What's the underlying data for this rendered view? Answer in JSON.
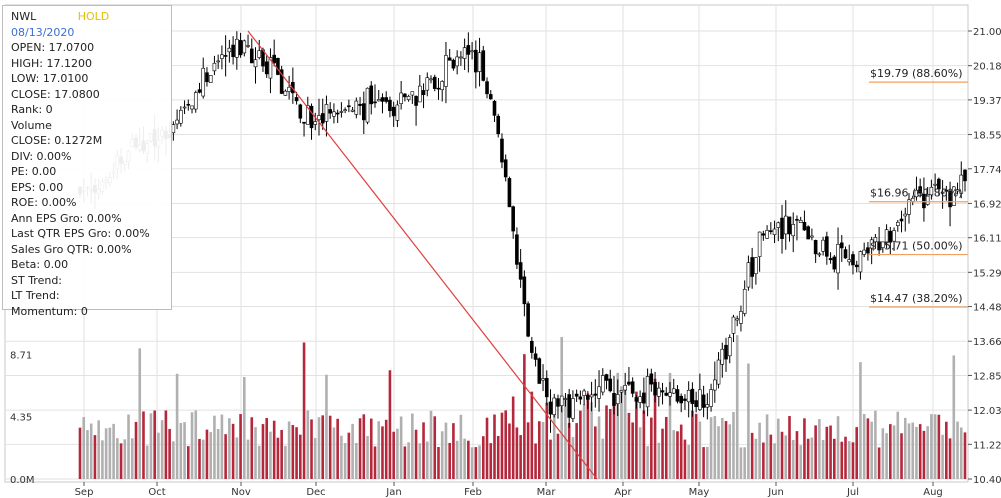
{
  "info": {
    "ticker": "NWL",
    "rating": "HOLD",
    "date": "08/13/2020",
    "lines": [
      "OPEN: 17.0700",
      "HIGH: 17.1200",
      "LOW: 17.0100",
      "CLOSE: 17.0800",
      "Rank: 0",
      "Volume",
      "CLOSE: 0.1272M",
      "DIV: 0.00%",
      "PE: 0.00",
      "EPS: 0.00",
      "ROE: 0.00%",
      "Ann EPS Gro: 0.00%",
      "Last QTR EPS Gro: 0.00%",
      "Sales Gro QTR: 0.00%",
      "Beta: 0.00",
      "ST Trend:",
      "LT Trend:",
      "Momentum: 0"
    ]
  },
  "chart_data": {
    "type": "candlestick",
    "x_ticks": [
      "Sep",
      "Oct",
      "Nov",
      "Dec",
      "Jan",
      "Feb",
      "Mar",
      "Apr",
      "May",
      "Jun",
      "Jul",
      "Aug"
    ],
    "price_axis": {
      "ticks": [
        "21.00",
        "20.18",
        "19.37",
        "18.55",
        "17.74",
        "16.92",
        "16.11",
        "15.29",
        "14.48",
        "13.66",
        "12.85",
        "12.03",
        "11.22",
        "10.40"
      ],
      "range": [
        10.4,
        21.0
      ]
    },
    "volume_axis": {
      "ticks": [
        "8.71",
        "4.35",
        "0.0M"
      ],
      "range": [
        0,
        13.06
      ]
    },
    "fib_levels": [
      {
        "label": "$19.79 (88.60%)",
        "value": 19.79
      },
      {
        "label": "$16.96 (61.80%)",
        "value": 16.96
      },
      {
        "label": "$15.71 (50.00%)",
        "value": 15.71
      },
      {
        "label": "$14.47 (38.20%)",
        "value": 14.47
      }
    ],
    "trend_line": {
      "start": [
        "Nov",
        21.0
      ],
      "end": [
        "Mar",
        10.4
      ]
    },
    "anchors": [
      [
        "Sep",
        17.2
      ],
      [
        "Oct",
        18.6
      ],
      [
        "Nov",
        20.6
      ],
      [
        "Dec",
        19.0
      ],
      [
        "Jan",
        19.3
      ],
      [
        "Feb",
        20.4
      ],
      [
        "Mar",
        13.5
      ],
      [
        "Apr",
        12.5
      ],
      [
        "May",
        12.3
      ],
      [
        "Jun",
        16.4
      ],
      [
        "Jul",
        15.6
      ],
      [
        "Aug",
        17.2
      ]
    ],
    "grid": true,
    "colors": {
      "up": "#ffffff",
      "down": "#000000",
      "volume_up": "#b0b0b0",
      "volume_down": "#b5283c",
      "trend": "#e04040",
      "fib": "#f0a060"
    }
  }
}
